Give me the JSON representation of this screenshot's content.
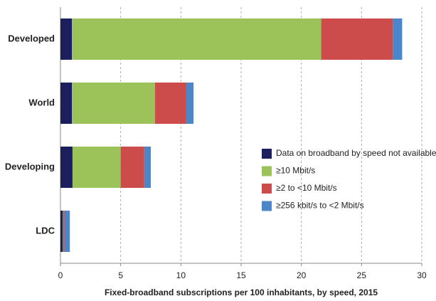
{
  "chart_data": {
    "type": "stacked-barh",
    "x_label": "Fixed-broadband subscriptions per 100 inhabitants, by speed, 2015",
    "categories": [
      "Developed",
      "World",
      "Developing",
      "LDC"
    ],
    "series": [
      {
        "name": "Data on broadband by speed not available",
        "color": "#1b1f5e",
        "values": [
          0.95,
          0.95,
          1.0,
          0.2
        ]
      },
      {
        "name": "≥10 Mbit/s",
        "color": "#9cc35a",
        "values": [
          20.7,
          6.9,
          4.0,
          0.03
        ]
      },
      {
        "name": "≥2 to <10 Mbit/s",
        "color": "#cc4b4b",
        "values": [
          5.95,
          2.6,
          1.95,
          0.1
        ]
      },
      {
        "name": "≥256 kbit/s to <2 Mbit/s",
        "color": "#4a86c8",
        "values": [
          0.77,
          0.6,
          0.55,
          0.45
        ]
      }
    ],
    "xlim": [
      0,
      30
    ],
    "xticks": [
      0,
      5,
      10,
      15,
      20,
      25,
      30
    ],
    "grid": true,
    "legend": "right"
  }
}
